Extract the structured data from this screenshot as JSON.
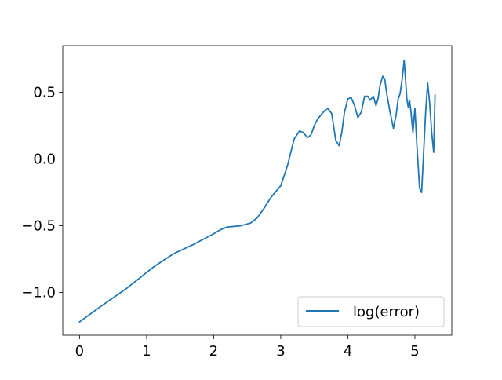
{
  "chart_data": {
    "type": "line",
    "title": "",
    "xlabel": "",
    "ylabel": "",
    "xlim": [
      -0.25,
      5.55
    ],
    "ylim": [
      -1.32,
      0.85
    ],
    "x_ticks": [
      0,
      1,
      2,
      3,
      4,
      5
    ],
    "x_tick_labels": [
      "0",
      "1",
      "2",
      "3",
      "4",
      "5"
    ],
    "y_ticks": [
      -1.0,
      -0.5,
      0.0,
      0.5
    ],
    "y_tick_labels": [
      "−1.0",
      "−0.5",
      "0.0",
      "0.5"
    ],
    "grid": false,
    "legend": {
      "position": "lower-right",
      "entries": [
        "log(error)"
      ]
    },
    "colors": {
      "series": "#1f77b4",
      "axes": "#000000",
      "legend_border": "#cccccc"
    },
    "series": [
      {
        "name": "log(error)",
        "x": [
          0,
          0.3,
          0.7,
          1.0,
          1.1,
          1.4,
          1.7,
          2.0,
          2.1,
          2.2,
          2.4,
          2.55,
          2.65,
          2.75,
          2.85,
          2.9,
          3.0,
          3.1,
          3.2,
          3.28,
          3.33,
          3.4,
          3.45,
          3.5,
          3.55,
          3.6,
          3.65,
          3.7,
          3.76,
          3.82,
          3.87,
          3.91,
          3.95,
          4.0,
          4.05,
          4.1,
          4.15,
          4.2,
          4.25,
          4.3,
          4.33,
          4.38,
          4.42,
          4.45,
          4.48,
          4.52,
          4.55,
          4.58,
          4.63,
          4.68,
          4.72,
          4.75,
          4.78,
          4.81,
          4.84,
          4.86,
          4.88,
          4.9,
          4.92,
          4.94,
          4.97,
          5.0,
          5.03,
          5.07,
          5.1,
          5.13,
          5.16,
          5.19,
          5.22,
          5.25,
          5.28,
          5.3
        ],
        "y": [
          -1.22,
          -1.11,
          -0.97,
          -0.85,
          -0.81,
          -0.71,
          -0.64,
          -0.56,
          -0.53,
          -0.51,
          -0.5,
          -0.48,
          -0.44,
          -0.37,
          -0.29,
          -0.26,
          -0.2,
          -0.05,
          0.15,
          0.21,
          0.2,
          0.16,
          0.18,
          0.25,
          0.3,
          0.33,
          0.36,
          0.38,
          0.34,
          0.14,
          0.1,
          0.2,
          0.35,
          0.45,
          0.46,
          0.4,
          0.31,
          0.35,
          0.47,
          0.47,
          0.44,
          0.47,
          0.4,
          0.45,
          0.55,
          0.62,
          0.6,
          0.49,
          0.35,
          0.23,
          0.33,
          0.45,
          0.49,
          0.6,
          0.74,
          0.6,
          0.45,
          0.39,
          0.44,
          0.36,
          0.2,
          0.38,
          0.1,
          -0.22,
          -0.25,
          0.05,
          0.35,
          0.57,
          0.42,
          0.2,
          0.05,
          0.48
        ]
      }
    ]
  }
}
